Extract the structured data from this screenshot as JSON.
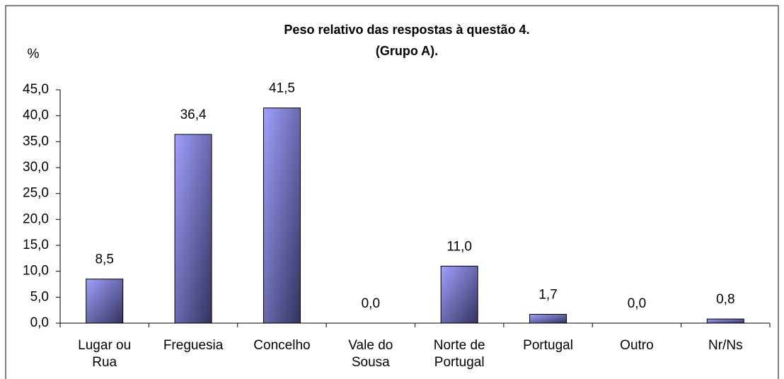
{
  "chart_data": {
    "type": "bar",
    "title": "Peso relativo das respostas à questão 4.",
    "subtitle": "(Grupo A).",
    "y_label": "%",
    "categories": [
      "Lugar ou\nRua",
      "Freguesia",
      "Concelho",
      "Vale do\nSousa",
      "Norte de\nPortugal",
      "Portugal",
      "Outro",
      "Nr/Ns"
    ],
    "values": [
      8.5,
      36.4,
      41.5,
      0.0,
      11.0,
      1.7,
      0.0,
      0.8
    ],
    "value_labels": [
      "8,5",
      "36,4",
      "41,5",
      "0,0",
      "11,0",
      "1,7",
      "0,0",
      "0,8"
    ],
    "color": "#6666cc",
    "ylim": [
      0,
      45
    ],
    "yticks": [
      {
        "value": 0,
        "label": "0,0"
      },
      {
        "value": 5,
        "label": "5,0"
      },
      {
        "value": 10,
        "label": "10,0"
      },
      {
        "value": 15,
        "label": "15,0"
      },
      {
        "value": 20,
        "label": "20,0"
      },
      {
        "value": 25,
        "label": "25,0"
      },
      {
        "value": 30,
        "label": "30,0"
      },
      {
        "value": 35,
        "label": "35,0"
      },
      {
        "value": 40,
        "label": "40,0"
      },
      {
        "value": 45,
        "label": "45,0"
      }
    ],
    "grid": false
  }
}
